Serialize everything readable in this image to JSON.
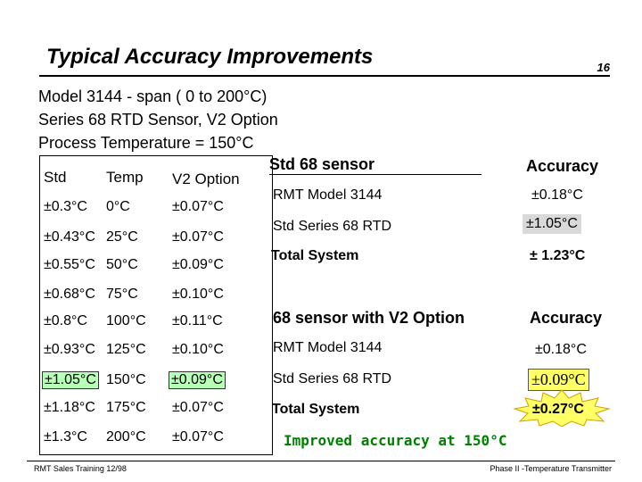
{
  "header": {
    "title": "Typical Accuracy Improvements",
    "page_number": "16"
  },
  "intro": [
    "Model 3144 - span ( 0 to 200°C)",
    "Series 68 RTD Sensor, V2 Option",
    "Process Temperature = 150°C"
  ],
  "table": {
    "headers": [
      "Std",
      "Temp",
      "V2 Option"
    ],
    "rows": [
      [
        "±0.3°C",
        "0°C",
        "±0.07°C"
      ],
      [
        "±0.43°C",
        "25°C",
        "±0.07°C"
      ],
      [
        "±0.55°C",
        "50°C",
        "±0.09°C"
      ],
      [
        "±0.68°C",
        "75°C",
        "±0.10°C"
      ],
      [
        "±0.8°C",
        "100°C",
        "±0.11°C"
      ],
      [
        "±0.93°C",
        "125°C",
        "±0.10°C"
      ],
      [
        "±1.05°C",
        "150°C",
        "±0.09°C"
      ],
      [
        "±1.18°C",
        "175°C",
        "±0.07°C"
      ],
      [
        "±1.3°C",
        "200°C",
        "±0.07°C"
      ]
    ]
  },
  "std_section": {
    "heading": "Std 68 sensor",
    "accuracy_heading": "Accuracy",
    "rows": [
      {
        "label": "RMT Model 3144",
        "value": "±0.18°C"
      },
      {
        "label": "Std Series 68 RTD",
        "value": "±1.05°C"
      },
      {
        "label": "Total System",
        "value": "± 1.23°C"
      }
    ]
  },
  "v2_section": {
    "heading": "68 sensor with V2 Option",
    "accuracy_heading": "Accuracy",
    "rows": [
      {
        "label": "RMT Model 3144",
        "value": "±0.18°C"
      },
      {
        "label": "Std Series 68 RTD",
        "value": "±0.09°C"
      },
      {
        "label": "Total System",
        "value": "±0.27°C"
      }
    ]
  },
  "callout": "Improved accuracy at 150°C",
  "footer": {
    "left": "RMT Sales Training 12/98",
    "right": "Phase II -Temperature Transmitter"
  },
  "colors": {
    "highlight_green": "#b8ffb8",
    "highlight_yellow": "#ffff66",
    "highlight_grey": "#d9d9d9",
    "callout_green": "#008000"
  }
}
